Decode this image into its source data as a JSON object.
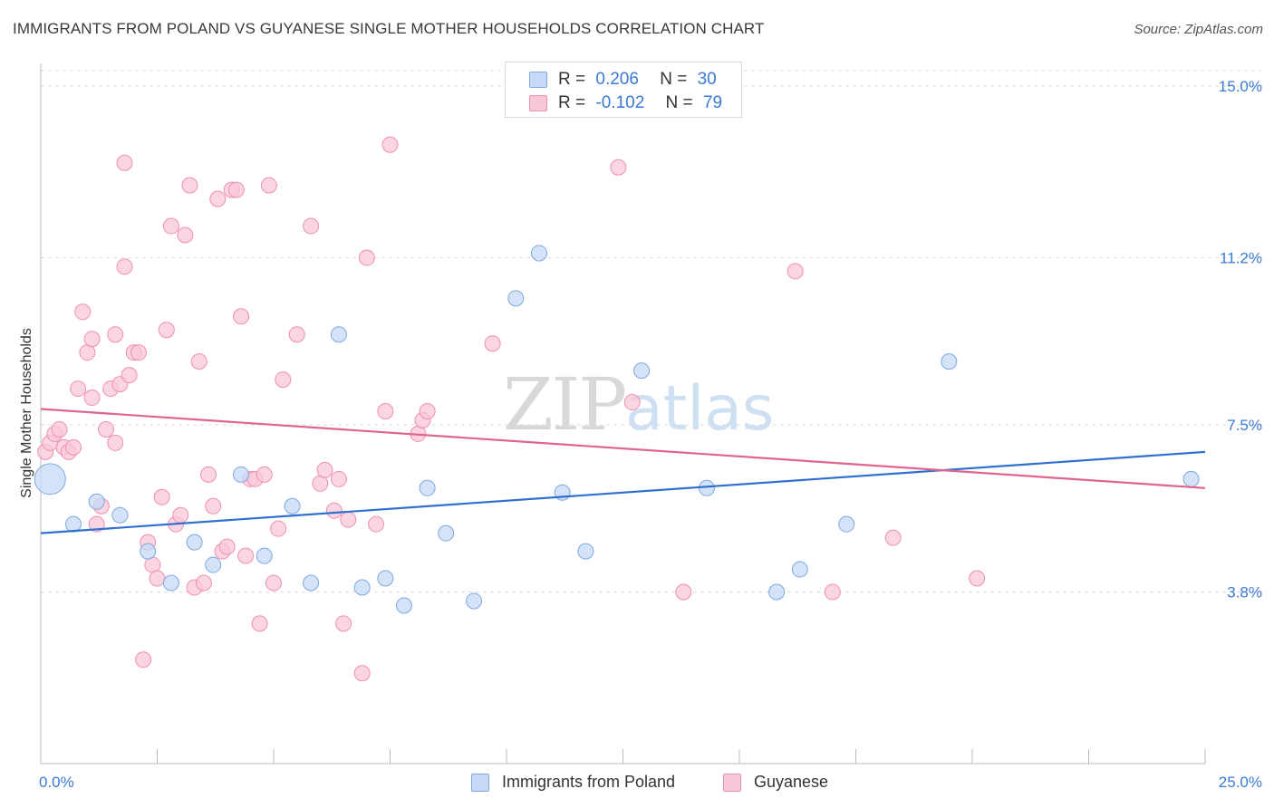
{
  "title": "IMMIGRANTS FROM POLAND VS GUYANESE SINGLE MOTHER HOUSEHOLDS CORRELATION CHART",
  "source": "Source: ZipAtlas.com",
  "watermark": {
    "zip": "ZIP",
    "atlas": "atlas"
  },
  "legend_top": [
    {
      "r_label": "R =",
      "r_value": "0.206",
      "n_label": "N =",
      "n_value": "30"
    },
    {
      "r_label": "R =",
      "r_value": "-0.102",
      "n_label": "N =",
      "n_value": "79"
    }
  ],
  "legend_bottom": [
    "Immigrants from Poland",
    "Guyanese"
  ],
  "colors": {
    "poland_fill": "#c6d9f5",
    "poland_stroke": "#7fa8e0",
    "poland_line": "#2f6fd0",
    "guyanese_fill": "#f9c8d8",
    "guyanese_stroke": "#ef8fb1",
    "guyanese_line": "#e0648e",
    "axis_label": "#3a7bd5",
    "grid": "#dddddd"
  },
  "chart_data": {
    "type": "scatter",
    "title": "IMMIGRANTS FROM POLAND VS GUYANESE SINGLE MOTHER HOUSEHOLDS CORRELATION CHART",
    "xlabel": "",
    "ylabel": "Single Mother Households",
    "xlim": [
      0,
      25
    ],
    "ylim": [
      0,
      15.5
    ],
    "x_tick_labels": [
      "0.0%",
      "25.0%"
    ],
    "y_tick_labels": [
      "3.8%",
      "7.5%",
      "11.2%",
      "15.0%"
    ],
    "y_ticks": [
      3.8,
      7.5,
      11.2,
      15.0
    ],
    "grid": "horizontal dashed",
    "legend_placement": "top-center",
    "series": [
      {
        "name": "Immigrants from Poland",
        "points": [
          [
            0.2,
            6.3
          ],
          [
            0.7,
            5.3
          ],
          [
            1.2,
            5.8
          ],
          [
            1.7,
            5.5
          ],
          [
            2.3,
            4.7
          ],
          [
            2.8,
            4.0
          ],
          [
            3.3,
            4.9
          ],
          [
            3.7,
            4.4
          ],
          [
            4.3,
            6.4
          ],
          [
            4.8,
            4.6
          ],
          [
            5.4,
            5.7
          ],
          [
            5.8,
            4.0
          ],
          [
            6.4,
            9.5
          ],
          [
            6.9,
            3.9
          ],
          [
            7.4,
            4.1
          ],
          [
            7.8,
            3.5
          ],
          [
            8.3,
            6.1
          ],
          [
            8.7,
            5.1
          ],
          [
            9.3,
            3.6
          ],
          [
            10.2,
            10.3
          ],
          [
            10.7,
            11.3
          ],
          [
            11.2,
            6.0
          ],
          [
            11.7,
            4.7
          ],
          [
            12.9,
            8.7
          ],
          [
            14.3,
            6.1
          ],
          [
            15.8,
            3.8
          ],
          [
            16.3,
            4.3
          ],
          [
            17.3,
            5.3
          ],
          [
            19.5,
            8.9
          ],
          [
            24.7,
            6.3
          ]
        ],
        "trend": {
          "x": [
            0,
            25
          ],
          "y": [
            5.1,
            6.9
          ]
        }
      },
      {
        "name": "Guyanese",
        "points": [
          [
            0.1,
            6.9
          ],
          [
            0.2,
            7.1
          ],
          [
            0.3,
            7.3
          ],
          [
            0.4,
            7.4
          ],
          [
            0.5,
            7.0
          ],
          [
            0.6,
            6.9
          ],
          [
            0.7,
            7.0
          ],
          [
            0.8,
            8.3
          ],
          [
            0.9,
            10.0
          ],
          [
            1.0,
            9.1
          ],
          [
            1.1,
            8.1
          ],
          [
            1.1,
            9.4
          ],
          [
            1.2,
            5.3
          ],
          [
            1.3,
            5.7
          ],
          [
            1.4,
            7.4
          ],
          [
            1.5,
            8.3
          ],
          [
            1.6,
            7.1
          ],
          [
            1.6,
            9.5
          ],
          [
            1.7,
            8.4
          ],
          [
            1.8,
            13.3
          ],
          [
            1.8,
            11.0
          ],
          [
            1.9,
            8.6
          ],
          [
            2.0,
            9.1
          ],
          [
            2.1,
            9.1
          ],
          [
            2.2,
            2.3
          ],
          [
            2.3,
            4.9
          ],
          [
            2.4,
            4.4
          ],
          [
            2.5,
            4.1
          ],
          [
            2.6,
            5.9
          ],
          [
            2.7,
            9.6
          ],
          [
            2.8,
            11.9
          ],
          [
            2.9,
            5.3
          ],
          [
            3.0,
            5.5
          ],
          [
            3.1,
            11.7
          ],
          [
            3.2,
            12.8
          ],
          [
            3.3,
            3.9
          ],
          [
            3.4,
            8.9
          ],
          [
            3.5,
            4.0
          ],
          [
            3.6,
            6.4
          ],
          [
            3.7,
            5.7
          ],
          [
            3.8,
            12.5
          ],
          [
            3.9,
            4.7
          ],
          [
            4.0,
            4.8
          ],
          [
            4.1,
            12.7
          ],
          [
            4.2,
            12.7
          ],
          [
            4.3,
            9.9
          ],
          [
            4.4,
            4.6
          ],
          [
            4.5,
            6.3
          ],
          [
            4.6,
            6.3
          ],
          [
            4.7,
            3.1
          ],
          [
            4.8,
            6.4
          ],
          [
            4.9,
            12.8
          ],
          [
            5.0,
            4.0
          ],
          [
            5.1,
            5.2
          ],
          [
            5.2,
            8.5
          ],
          [
            5.5,
            9.5
          ],
          [
            5.8,
            11.9
          ],
          [
            6.0,
            6.2
          ],
          [
            6.1,
            6.5
          ],
          [
            6.3,
            5.6
          ],
          [
            6.4,
            6.3
          ],
          [
            6.5,
            3.1
          ],
          [
            6.6,
            5.4
          ],
          [
            6.9,
            2.0
          ],
          [
            7.0,
            11.2
          ],
          [
            7.2,
            5.3
          ],
          [
            7.4,
            7.8
          ],
          [
            7.5,
            13.7
          ],
          [
            8.1,
            7.3
          ],
          [
            8.2,
            7.6
          ],
          [
            8.3,
            7.8
          ],
          [
            9.7,
            9.3
          ],
          [
            12.4,
            13.2
          ],
          [
            12.7,
            8.0
          ],
          [
            13.8,
            3.8
          ],
          [
            16.2,
            10.9
          ],
          [
            17.0,
            3.8
          ],
          [
            18.3,
            5.0
          ],
          [
            20.1,
            4.1
          ]
        ],
        "trend": {
          "x": [
            0,
            25
          ],
          "y": [
            7.85,
            6.1
          ]
        }
      }
    ]
  }
}
